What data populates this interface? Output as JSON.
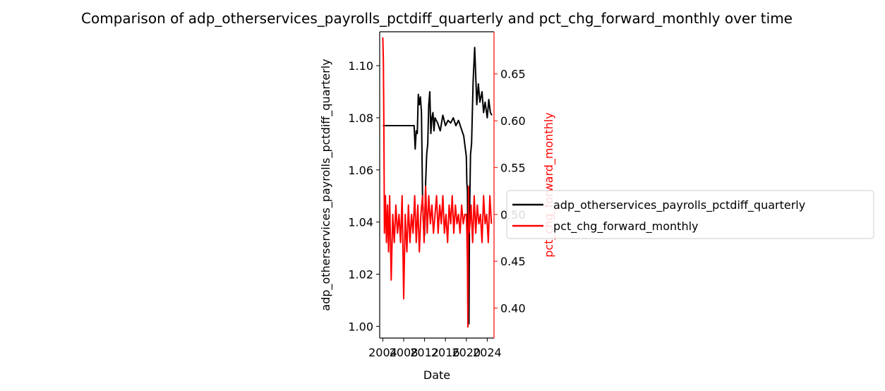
{
  "chart_data": {
    "type": "line",
    "title": "Comparison of adp_otherservices_payrolls_pctdiff_quarterly and pct_chg_forward_monthly over time",
    "xlabel": "Date",
    "ylabel_left": "adp_otherservices_payrolls_pctdiff_quarterly",
    "ylabel_right": "pct_chg_forward_monthly",
    "x_ticks": [
      "2004",
      "2008",
      "2012",
      "2016",
      "2020",
      "2024"
    ],
    "xlim": [
      2003.4,
      2025.3
    ],
    "y_left_ticks": [
      "1.00",
      "1.02",
      "1.04",
      "1.06",
      "1.08",
      "1.10"
    ],
    "y_left_lim": [
      0.9955,
      1.113
    ],
    "y_right_ticks": [
      "0.40",
      "0.45",
      "0.50",
      "0.55",
      "0.60",
      "0.65"
    ],
    "y_right_lim": [
      0.368,
      0.695
    ],
    "legend_location": "center-right, outside plot",
    "series": [
      {
        "name": "adp_otherservices_payrolls_pctdiff_quarterly",
        "axis": "left",
        "color": "#000000",
        "x": [
          2004.0,
          2006.0,
          2008.0,
          2010.0,
          2010.2,
          2010.4,
          2010.6,
          2010.8,
          2011.0,
          2011.2,
          2011.4,
          2011.6,
          2011.8,
          2012.0,
          2012.2,
          2012.4,
          2012.6,
          2012.8,
          2013.0,
          2013.2,
          2013.4,
          2013.6,
          2013.8,
          2014.0,
          2014.5,
          2015.0,
          2015.5,
          2016.0,
          2016.5,
          2017.0,
          2017.5,
          2018.0,
          2018.5,
          2019.0,
          2019.5,
          2020.0,
          2020.1,
          2020.2,
          2020.3,
          2020.4,
          2020.5,
          2020.6,
          2020.8,
          2021.0,
          2021.3,
          2021.6,
          2022.0,
          2022.3,
          2022.6,
          2023.0,
          2023.3,
          2023.6,
          2024.0,
          2024.3,
          2024.6,
          2024.9
        ],
        "y": [
          1.077,
          1.077,
          1.077,
          1.077,
          1.068,
          1.075,
          1.074,
          1.089,
          1.085,
          1.088,
          1.082,
          1.05,
          1.038,
          1.035,
          1.055,
          1.066,
          1.07,
          1.085,
          1.09,
          1.074,
          1.08,
          1.082,
          1.075,
          1.08,
          1.078,
          1.075,
          1.081,
          1.077,
          1.079,
          1.078,
          1.08,
          1.077,
          1.079,
          1.076,
          1.073,
          1.065,
          1.055,
          1.052,
          1.025,
          1.001,
          1.001,
          1.04,
          1.066,
          1.07,
          1.094,
          1.107,
          1.085,
          1.093,
          1.086,
          1.09,
          1.082,
          1.086,
          1.08,
          1.087,
          1.082,
          1.081
        ]
      },
      {
        "name": "pct_chg_forward_monthly",
        "axis": "right",
        "color": "#ff0000",
        "x": [
          2004.0,
          2004.1,
          2004.2,
          2004.3,
          2004.5,
          2004.7,
          2004.9,
          2005.1,
          2005.3,
          2005.6,
          2005.9,
          2006.2,
          2006.5,
          2006.8,
          2007.1,
          2007.4,
          2007.7,
          2008.0,
          2008.3,
          2008.6,
          2008.9,
          2009.2,
          2009.5,
          2009.8,
          2010.1,
          2010.4,
          2010.7,
          2011.0,
          2011.3,
          2011.6,
          2011.9,
          2012.2,
          2012.5,
          2012.8,
          2013.1,
          2013.4,
          2013.7,
          2014.0,
          2014.3,
          2014.6,
          2014.9,
          2015.2,
          2015.5,
          2015.8,
          2016.1,
          2016.4,
          2016.7,
          2017.0,
          2017.3,
          2017.6,
          2017.9,
          2018.2,
          2018.5,
          2018.8,
          2019.1,
          2019.4,
          2019.7,
          2020.0,
          2020.1,
          2020.2,
          2020.3,
          2020.4,
          2020.5,
          2020.7,
          2020.9,
          2021.2,
          2021.5,
          2021.8,
          2022.1,
          2022.4,
          2022.7,
          2023.0,
          2023.3,
          2023.6,
          2023.9,
          2024.2,
          2024.5,
          2024.8
        ],
        "y": [
          0.689,
          0.665,
          0.6,
          0.48,
          0.52,
          0.47,
          0.51,
          0.46,
          0.52,
          0.43,
          0.5,
          0.47,
          0.51,
          0.48,
          0.5,
          0.47,
          0.52,
          0.41,
          0.5,
          0.46,
          0.51,
          0.47,
          0.5,
          0.48,
          0.52,
          0.47,
          0.51,
          0.46,
          0.5,
          0.52,
          0.47,
          0.53,
          0.48,
          0.52,
          0.49,
          0.51,
          0.48,
          0.5,
          0.52,
          0.48,
          0.51,
          0.49,
          0.52,
          0.48,
          0.5,
          0.47,
          0.51,
          0.49,
          0.52,
          0.48,
          0.51,
          0.49,
          0.5,
          0.48,
          0.51,
          0.49,
          0.5,
          0.5,
          0.48,
          0.45,
          0.38,
          0.53,
          0.48,
          0.49,
          0.51,
          0.47,
          0.52,
          0.48,
          0.51,
          0.49,
          0.5,
          0.47,
          0.52,
          0.49,
          0.5,
          0.47,
          0.52,
          0.49
        ]
      }
    ]
  }
}
